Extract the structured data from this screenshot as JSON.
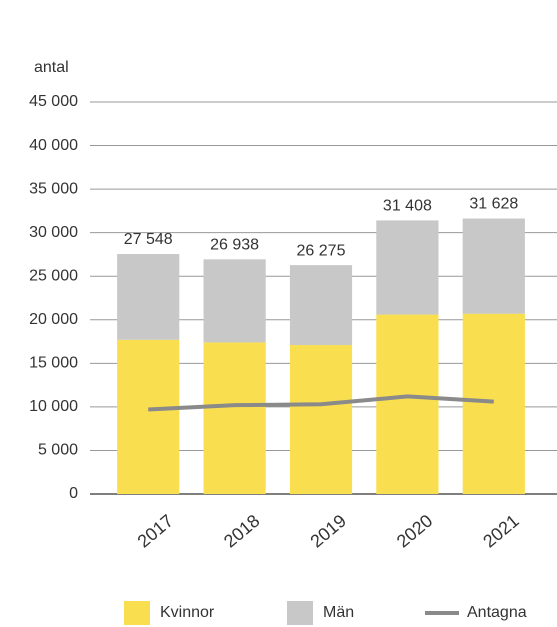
{
  "chart_data": {
    "type": "bar",
    "stacked": true,
    "y_axis_label": "antal",
    "categories": [
      "2017",
      "2018",
      "2019",
      "2020",
      "2021"
    ],
    "series": [
      {
        "name": "Kvinnor",
        "color": "#f9df4f",
        "values": [
          17700,
          17400,
          17100,
          20600,
          20700
        ]
      },
      {
        "name": "Män",
        "color": "#c8c8c8",
        "values": [
          9848,
          9538,
          9175,
          10808,
          10928
        ]
      },
      {
        "name": "Antagna",
        "color": "#8a8a8a",
        "type": "line",
        "values": [
          9700,
          10200,
          10300,
          11200,
          10600
        ]
      }
    ],
    "totals": [
      27548,
      26938,
      26275,
      31408,
      31628
    ],
    "total_labels": [
      "27 548",
      "26 938",
      "26 275",
      "31 408",
      "31 628"
    ],
    "ylim": [
      0,
      45000
    ],
    "yticks": [
      0,
      {
        "value": 5000,
        "label": "5 000"
      },
      {
        "value": 10000,
        "label": "10 000"
      },
      {
        "value": 15000,
        "label": "15 000"
      },
      {
        "value": 20000,
        "label": "20 000"
      },
      {
        "value": 25000,
        "label": "25 000"
      },
      {
        "value": 30000,
        "label": "30 000"
      },
      {
        "value": 35000,
        "label": "35 000"
      },
      {
        "value": 40000,
        "label": "40 000"
      },
      {
        "value": 45000,
        "label": "45 000"
      }
    ],
    "grid": true
  }
}
